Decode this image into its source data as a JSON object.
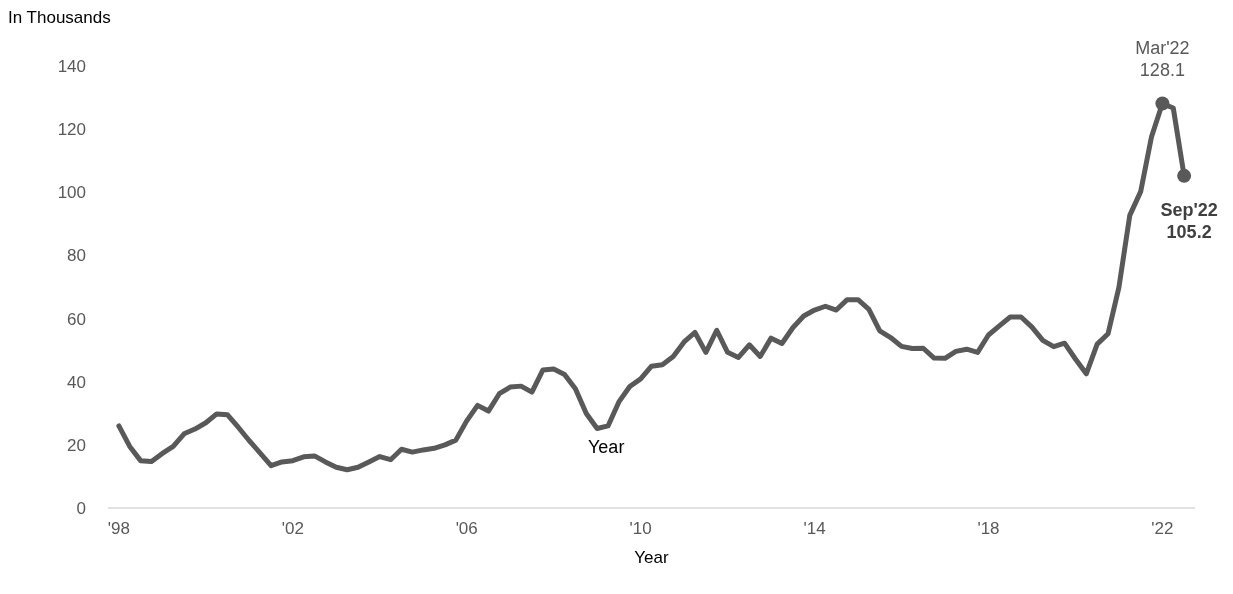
{
  "chart_data": {
    "type": "line",
    "ylabel": "In Thousands",
    "xlabel": "Year",
    "x": [
      1998,
      1998.25,
      1998.5,
      1998.75,
      1999,
      1999.25,
      1999.5,
      1999.75,
      2000,
      2000.25,
      2000.5,
      2000.75,
      2001,
      2001.25,
      2001.5,
      2001.75,
      2002,
      2002.25,
      2002.5,
      2002.75,
      2003,
      2003.25,
      2003.5,
      2003.75,
      2004,
      2004.25,
      2004.5,
      2004.75,
      2005,
      2005.25,
      2005.5,
      2005.75,
      2006,
      2006.25,
      2006.5,
      2006.75,
      2007,
      2007.25,
      2007.5,
      2007.75,
      2008,
      2008.25,
      2008.5,
      2008.75,
      2009,
      2009.25,
      2009.5,
      2009.75,
      2010,
      2010.25,
      2010.5,
      2010.75,
      2011,
      2011.25,
      2011.5,
      2011.75,
      2012,
      2012.25,
      2012.5,
      2012.75,
      2013,
      2013.25,
      2013.5,
      2013.75,
      2014,
      2014.25,
      2014.5,
      2014.75,
      2015,
      2015.25,
      2015.5,
      2015.75,
      2016,
      2016.25,
      2016.5,
      2016.75,
      2017,
      2017.25,
      2017.5,
      2017.75,
      2018,
      2018.25,
      2018.5,
      2018.75,
      2019,
      2019.25,
      2019.5,
      2019.75,
      2020,
      2020.25,
      2020.5,
      2020.75,
      2021,
      2021.25,
      2021.5,
      2021.75,
      2022,
      2022.25,
      2022.5
    ],
    "series": [
      {
        "color": "#595959",
        "values": [
          26,
          19.5,
          15,
          14.7,
          17.3,
          19.5,
          23.5,
          25,
          27,
          29.8,
          29.5,
          25.5,
          21.3,
          17.4,
          13.4,
          14.6,
          15,
          16.2,
          16.5,
          14.6,
          12.9,
          12.1,
          12.9,
          14.6,
          16.3,
          15.3,
          18.6,
          17.7,
          18.4,
          18.9,
          20,
          21.5,
          27.6,
          32.5,
          30.7,
          36.2,
          38.3,
          38.6,
          36.7,
          43.7,
          44,
          42.3,
          37.8,
          29.9,
          25.2,
          26,
          33.6,
          38.5,
          40.9,
          44.9,
          45.4,
          48,
          52.6,
          55.6,
          49.3,
          56.3,
          49.3,
          47.7,
          51.7,
          48,
          53.8,
          52.1,
          57.1,
          60.8,
          62.7,
          63.9,
          62.7,
          66,
          66,
          62.9,
          56.1,
          54,
          51.2,
          50.5,
          50.6,
          47.5,
          47.4,
          49.6,
          50.3,
          49.3,
          54.8,
          57.7,
          60.5,
          60.5,
          57.3,
          53.1,
          51.1,
          52.2,
          47.2,
          42.5,
          51.9,
          55.2,
          69.9,
          92.7,
          100.2,
          117.6,
          128.1,
          126.7,
          105.2
        ]
      }
    ],
    "xlim": [
      1997.75,
      2022.75
    ],
    "xticks": [
      {
        "value": 1998,
        "label": "'98"
      },
      {
        "value": 2002,
        "label": "'02"
      },
      {
        "value": 2006,
        "label": "'06"
      },
      {
        "value": 2010,
        "label": "'10"
      },
      {
        "value": 2014,
        "label": "'14"
      },
      {
        "value": 2018,
        "label": "'18"
      },
      {
        "value": 2022,
        "label": "'22"
      }
    ],
    "ylim": [
      0,
      140
    ],
    "yticks": [
      0,
      20,
      40,
      60,
      80,
      100,
      120,
      140
    ],
    "grid": false,
    "marker": "none",
    "line_style": "solid",
    "annotations": [
      {
        "text": "Mar'22\n128.1",
        "x": 2022,
        "y": 128.1
      },
      {
        "text": "Sep'22\n105.2",
        "x": 2022.5,
        "y": 105.2
      },
      "Year"
    ]
  }
}
